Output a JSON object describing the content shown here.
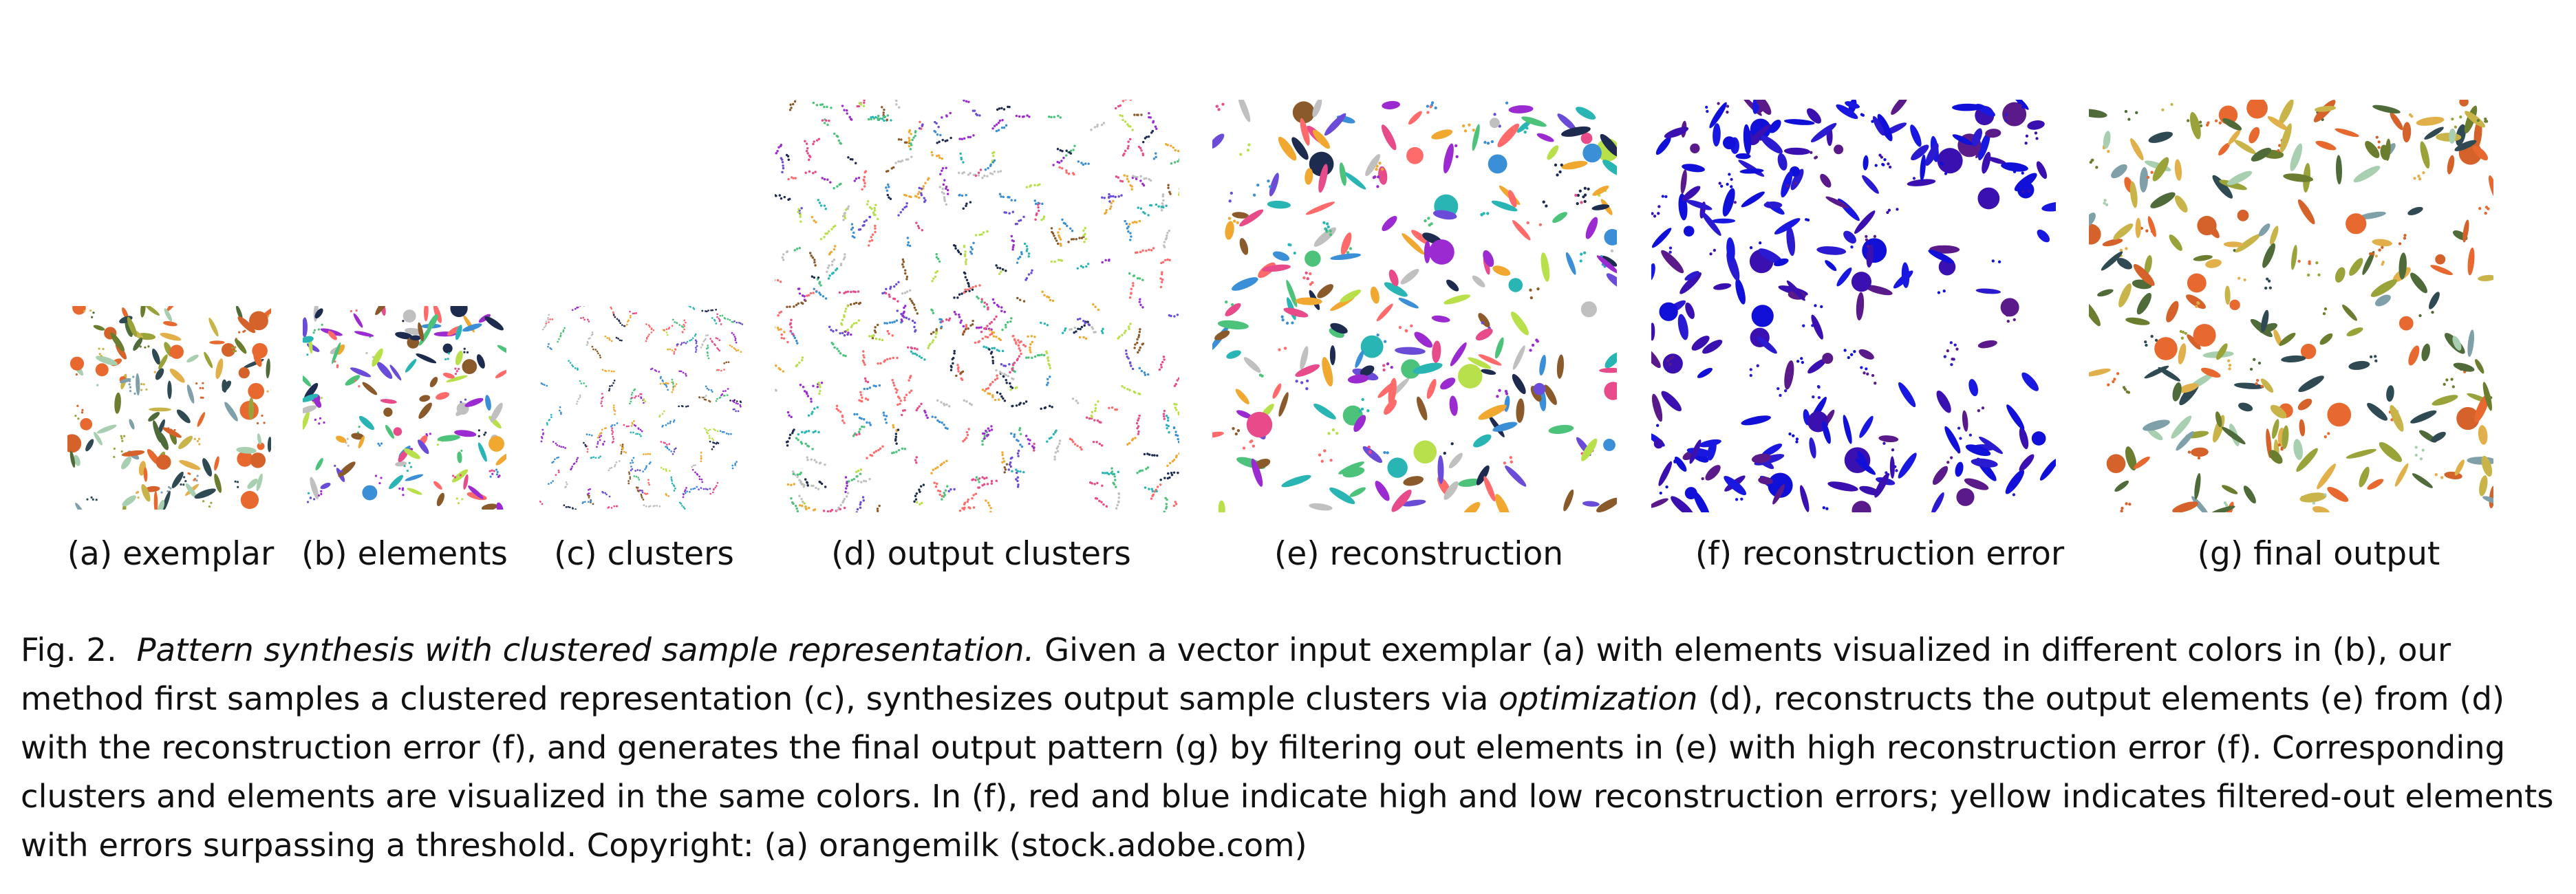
{
  "panels": [
    {
      "id": "a",
      "label": "(a) exemplar"
    },
    {
      "id": "b",
      "label": "(b) elements"
    },
    {
      "id": "c",
      "label": "(c) clusters"
    },
    {
      "id": "d",
      "label": "(d) output clusters"
    },
    {
      "id": "e",
      "label": "(e) reconstruction"
    },
    {
      "id": "f",
      "label": "(f) reconstruction error"
    },
    {
      "id": "g",
      "label": "(g) final output"
    }
  ],
  "caption": {
    "fig_number": "Fig. 2.",
    "title": "Pattern synthesis with clustered sample representation.",
    "part1": " Given a vector input exemplar (a) with elements visualized in different colors in (b), our method first samples a clustered representation (c), synthesizes output sample clusters via ",
    "emph": "optimization",
    "part2": " (d), reconstructs the output elements (e) from (d) with the reconstruction error (f), and generates the final output pattern (g) by filtering out elements in (e) with high reconstruction error (f). Corresponding clusters and elements are visualized in the same colors. In (f), red and blue indicate high and low reconstruction errors; yellow indicates filtered-out elements with errors surpassing a threshold. Copyright: (a) orangemilk (stock.adobe.com)"
  },
  "palettes": {
    "natural": [
      "#e8692f",
      "#6b7d2f",
      "#9aa23a",
      "#c9b44a",
      "#2f4a52",
      "#a8cfb0",
      "#7fa0a8",
      "#e2b04a",
      "#4f6b3a",
      "#d4622a"
    ],
    "vivid": [
      "#9b2bd0",
      "#3a8fd6",
      "#e84b8a",
      "#4cc27a",
      "#f0a830",
      "#1d2b4f",
      "#b8e04a",
      "#ff6b6b",
      "#6a4cd8",
      "#2ab5b5",
      "#8a5a2a",
      "#c0c0c0"
    ],
    "error": [
      "#1010d8",
      "#1818e0",
      "#2a1ad0",
      "#5a1a8a",
      "#3a10b0"
    ]
  }
}
